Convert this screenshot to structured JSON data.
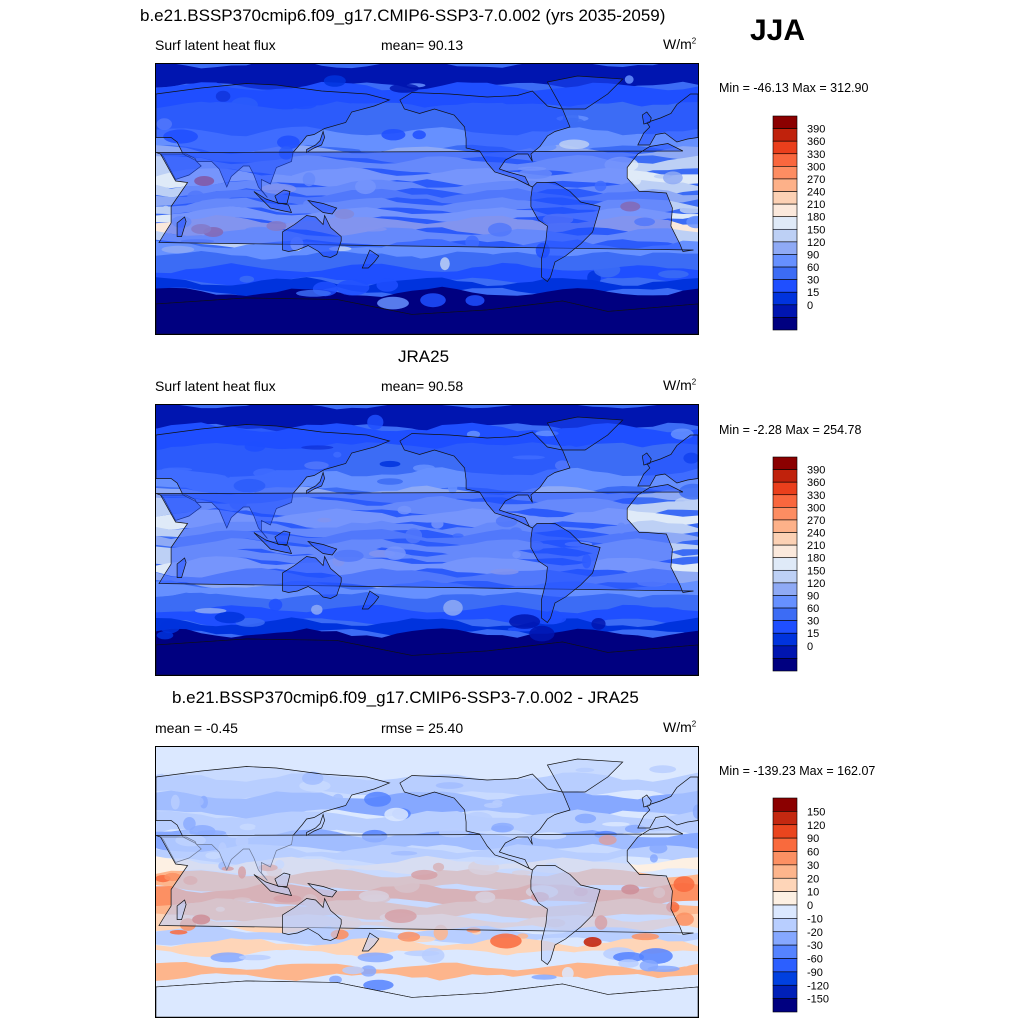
{
  "season": "JJA",
  "colors": {
    "abs_levels": [
      "#000080",
      "#0015b0",
      "#0033dd",
      "#1f4fff",
      "#3c6cf5",
      "#6690ff",
      "#8faaf5",
      "#bdd0f5",
      "#dfeaf8",
      "#fbe9dc",
      "#fcd1b4",
      "#fdb189",
      "#fd8d62",
      "#f9673e",
      "#ea3f1c",
      "#c0220c",
      "#8b0000"
    ],
    "diff_levels": [
      "#000080",
      "#0020b8",
      "#0040e0",
      "#2c5fff",
      "#5583ff",
      "#86a8ff",
      "#b8ceff",
      "#dbe8ff",
      "#fdf0e3",
      "#fed5b8",
      "#fdb58c",
      "#fc9063",
      "#f96a3d",
      "#ea451e",
      "#c42810",
      "#8b0000"
    ],
    "land_outline": "#111111"
  },
  "panels": [
    {
      "id": "model",
      "title": "b.e21.BSSP370cmip6.f09_g17.CMIP6-SSP3-7.0.002 (yrs 2035-2059)",
      "left_label": "Surf latent heat flux",
      "center_label": "mean=  90.13",
      "units": "W/m",
      "units_sup": "2",
      "minmax": "Min = -46.13 Max = 312.90",
      "colorbar_type": "abs"
    },
    {
      "id": "obs",
      "title": "JRA25",
      "left_label": "Surf latent heat flux",
      "center_label": "mean=  90.58",
      "units": "W/m",
      "units_sup": "2",
      "minmax": "Min =  -2.28 Max = 254.78",
      "colorbar_type": "abs"
    },
    {
      "id": "diff",
      "title": "b.e21.BSSP370cmip6.f09_g17.CMIP6-SSP3-7.0.002 - JRA25",
      "left_label": "mean =  -0.45",
      "center_label": "rmse =  25.40",
      "units": "W/m",
      "units_sup": "2",
      "minmax": "Min = -139.23 Max = 162.07",
      "colorbar_type": "diff"
    }
  ],
  "chart_data": [
    {
      "type": "heatmap",
      "variable": "Surf latent heat flux",
      "colorbar_labels": [
        "390",
        "360",
        "330",
        "300",
        "270",
        "240",
        "210",
        "180",
        "150",
        "120",
        "90",
        "60",
        "30",
        "15",
        "0"
      ],
      "mean": 90.13,
      "min": -46.13,
      "max": 312.9
    },
    {
      "type": "heatmap",
      "variable": "Surf latent heat flux",
      "colorbar_labels": [
        "390",
        "360",
        "330",
        "300",
        "270",
        "240",
        "210",
        "180",
        "150",
        "120",
        "90",
        "60",
        "30",
        "15",
        "0"
      ],
      "mean": 90.58,
      "min": -2.28,
      "max": 254.78
    },
    {
      "type": "heatmap",
      "colorbar_labels": [
        "150",
        "120",
        "90",
        "60",
        "30",
        "20",
        "10",
        "0",
        "-10",
        "-20",
        "-30",
        "-60",
        "-90",
        "-120",
        "-150"
      ],
      "mean": -0.45,
      "rmse": 25.4,
      "min": -139.23,
      "max": 162.07
    }
  ]
}
